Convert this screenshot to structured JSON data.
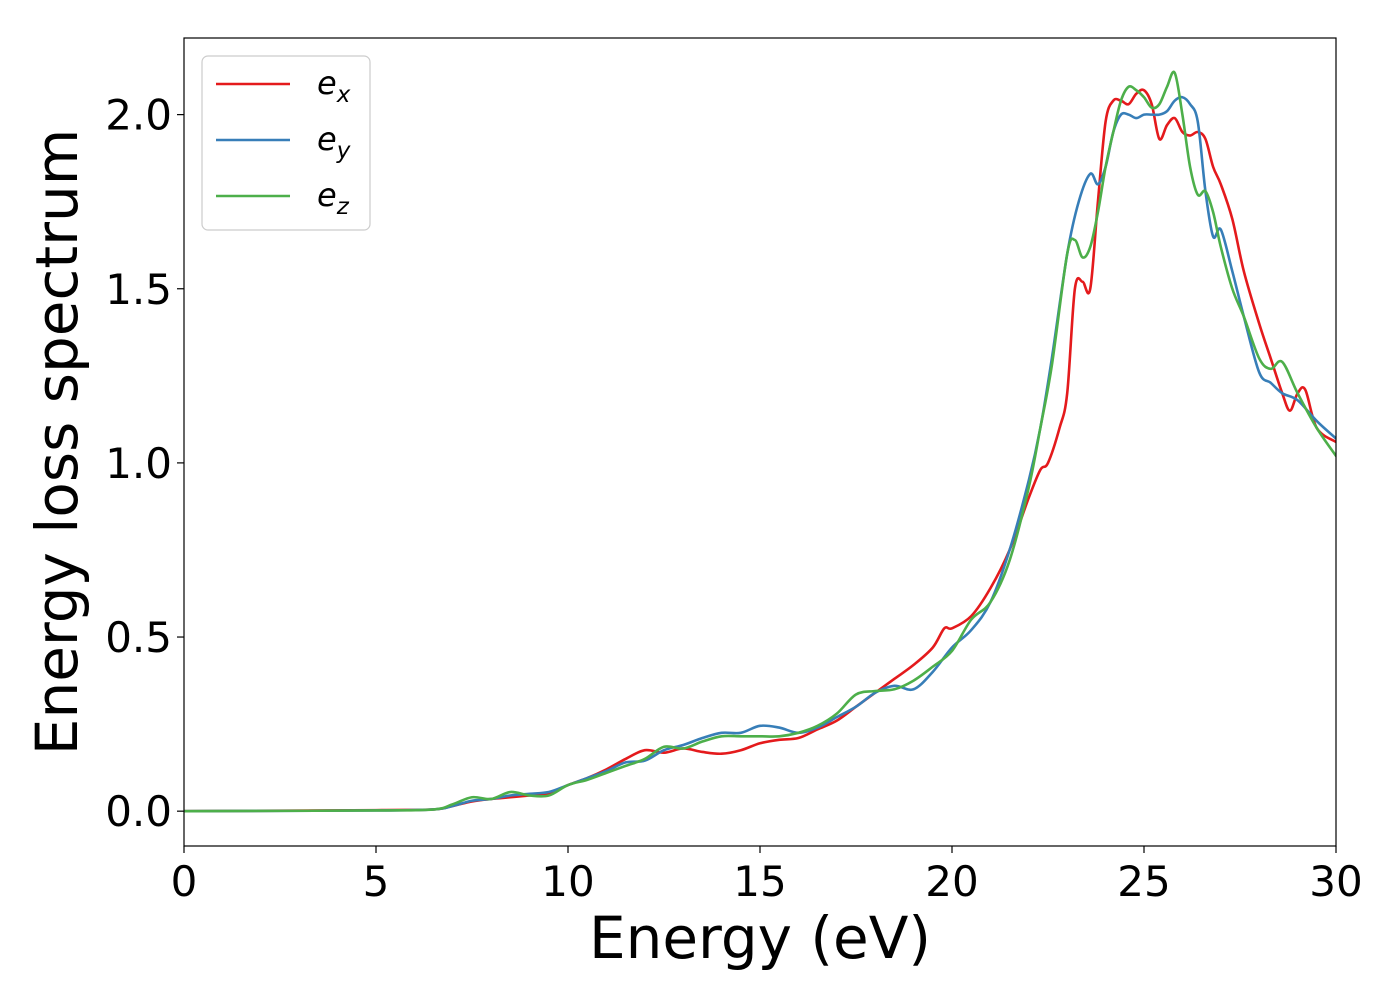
{
  "chart_data": {
    "type": "line",
    "title": "",
    "xlabel": "Energy (eV)",
    "ylabel": "Energy loss spectrum",
    "xlim": [
      0,
      30
    ],
    "ylim": [
      -0.1,
      2.22
    ],
    "xticks": [
      0,
      5,
      10,
      15,
      20,
      25,
      30
    ],
    "xtick_labels": [
      "0",
      "5",
      "10",
      "15",
      "20",
      "25",
      "30"
    ],
    "yticks": [
      0.0,
      0.5,
      1.0,
      1.5,
      2.0
    ],
    "ytick_labels": [
      "0.0",
      "0.5",
      "1.0",
      "1.5",
      "2.0"
    ],
    "grid": false,
    "legend_position": "top-left",
    "series": [
      {
        "name": "e_x",
        "label_base": "e",
        "label_sub": "x",
        "color": "#e41a1c",
        "x": [
          0,
          5,
          6.5,
          7,
          7.5,
          8,
          8.5,
          9,
          9.5,
          10,
          10.5,
          11,
          11.5,
          12,
          12.5,
          13,
          13.5,
          14,
          14.5,
          15,
          15.5,
          16,
          16.5,
          17,
          17.5,
          18,
          18.5,
          19,
          19.5,
          19.8,
          20,
          20.5,
          21,
          21.5,
          22,
          22.3,
          22.5,
          22.8,
          23,
          23.2,
          23.4,
          23.6,
          23.8,
          24,
          24.2,
          24.4,
          24.6,
          24.8,
          25,
          25.2,
          25.4,
          25.6,
          25.8,
          26,
          26.2,
          26.4,
          26.6,
          26.8,
          27,
          27.3,
          27.6,
          28,
          28.3,
          28.6,
          28.8,
          29,
          29.2,
          29.5,
          30
        ],
        "y": [
          0,
          0.003,
          0.005,
          0.015,
          0.028,
          0.035,
          0.04,
          0.045,
          0.05,
          0.075,
          0.095,
          0.12,
          0.15,
          0.175,
          0.168,
          0.18,
          0.17,
          0.165,
          0.175,
          0.195,
          0.205,
          0.21,
          0.235,
          0.26,
          0.3,
          0.34,
          0.38,
          0.42,
          0.47,
          0.525,
          0.525,
          0.56,
          0.64,
          0.75,
          0.9,
          0.98,
          1.0,
          1.1,
          1.2,
          1.5,
          1.52,
          1.5,
          1.75,
          1.98,
          2.04,
          2.04,
          2.03,
          2.06,
          2.07,
          2.03,
          1.93,
          1.97,
          1.99,
          1.95,
          1.94,
          1.95,
          1.93,
          1.85,
          1.8,
          1.7,
          1.55,
          1.4,
          1.3,
          1.2,
          1.15,
          1.2,
          1.21,
          1.1,
          1.06
        ]
      },
      {
        "name": "e_y",
        "label_base": "e",
        "label_sub": "y",
        "color": "#377eb8",
        "x": [
          0,
          5,
          6.5,
          7,
          7.5,
          8,
          8.5,
          9,
          9.5,
          10,
          10.5,
          11,
          11.5,
          12,
          12.5,
          13,
          13.5,
          14,
          14.5,
          15,
          15.5,
          16,
          16.5,
          17,
          17.5,
          18,
          18.5,
          19,
          19.5,
          20,
          20.5,
          21,
          21.5,
          22,
          22.3,
          22.6,
          23,
          23.3,
          23.6,
          23.8,
          24,
          24.2,
          24.4,
          24.6,
          24.8,
          25,
          25.2,
          25.4,
          25.6,
          25.8,
          26,
          26.2,
          26.4,
          26.6,
          26.8,
          27,
          27.3,
          27.6,
          28,
          28.3,
          28.6,
          29,
          29.5,
          30
        ],
        "y": [
          0,
          0.002,
          0.005,
          0.015,
          0.03,
          0.035,
          0.045,
          0.05,
          0.055,
          0.075,
          0.095,
          0.115,
          0.14,
          0.145,
          0.175,
          0.19,
          0.21,
          0.225,
          0.225,
          0.245,
          0.24,
          0.225,
          0.24,
          0.27,
          0.3,
          0.34,
          0.36,
          0.35,
          0.4,
          0.47,
          0.52,
          0.6,
          0.75,
          0.95,
          1.1,
          1.3,
          1.6,
          1.75,
          1.83,
          1.8,
          1.85,
          1.95,
          2.0,
          2.0,
          1.99,
          2.0,
          2.0,
          2.0,
          2.01,
          2.04,
          2.05,
          2.03,
          1.98,
          1.78,
          1.65,
          1.67,
          1.55,
          1.42,
          1.26,
          1.23,
          1.2,
          1.18,
          1.12,
          1.07
        ]
      },
      {
        "name": "e_z",
        "label_base": "e",
        "label_sub": "z",
        "color": "#4daf4a",
        "x": [
          0,
          5,
          6.5,
          7,
          7.5,
          8,
          8.5,
          9,
          9.5,
          10,
          10.5,
          11,
          11.5,
          12,
          12.5,
          13,
          13.5,
          14,
          14.5,
          15,
          15.5,
          16,
          16.5,
          17,
          17.5,
          18,
          18.5,
          19,
          19.5,
          20,
          20.5,
          21,
          21.5,
          22,
          22.3,
          22.6,
          23,
          23.2,
          23.4,
          23.6,
          23.8,
          24,
          24.2,
          24.4,
          24.6,
          24.8,
          25,
          25.2,
          25.4,
          25.6,
          25.8,
          26,
          26.2,
          26.4,
          26.6,
          26.8,
          27,
          27.3,
          27.6,
          28,
          28.3,
          28.6,
          29,
          29.5,
          30
        ],
        "y": [
          0,
          0.002,
          0.005,
          0.02,
          0.04,
          0.035,
          0.055,
          0.045,
          0.045,
          0.075,
          0.09,
          0.11,
          0.13,
          0.15,
          0.185,
          0.18,
          0.2,
          0.215,
          0.215,
          0.215,
          0.215,
          0.225,
          0.245,
          0.28,
          0.335,
          0.345,
          0.35,
          0.375,
          0.415,
          0.46,
          0.55,
          0.6,
          0.72,
          0.93,
          1.1,
          1.28,
          1.6,
          1.64,
          1.59,
          1.62,
          1.72,
          1.85,
          1.95,
          2.04,
          2.08,
          2.07,
          2.05,
          2.02,
          2.03,
          2.08,
          2.12,
          2.0,
          1.85,
          1.77,
          1.78,
          1.72,
          1.62,
          1.5,
          1.42,
          1.3,
          1.27,
          1.29,
          1.2,
          1.1,
          1.02
        ]
      }
    ]
  }
}
